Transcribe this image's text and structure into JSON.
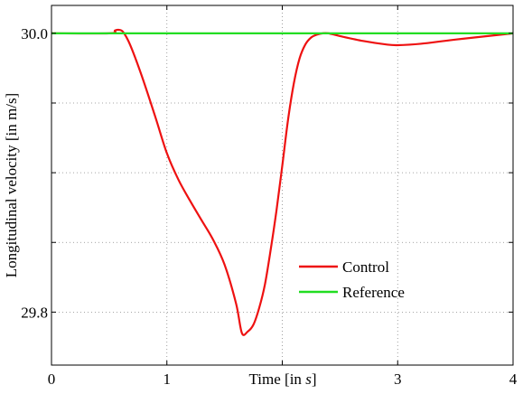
{
  "chart_data": {
    "type": "line",
    "xlabel": "Time [in s]",
    "ylabel": "Longitudinal velocity [in m/s]",
    "xlim": [
      0,
      4
    ],
    "ylim": [
      29.762,
      30.02
    ],
    "x_ticks": [
      0,
      1,
      2,
      3,
      4
    ],
    "x_tick_labels": [
      "0",
      "1",
      "",
      "3",
      "4"
    ],
    "y_ticks": [
      29.8,
      29.85,
      29.9,
      29.95,
      30.0
    ],
    "y_tick_labels": [
      "29.8",
      "",
      "",
      "",
      "30.0"
    ],
    "grid": true,
    "legend_position": "lower-right",
    "series": [
      {
        "name": "Control",
        "color": "#ee1111",
        "x": [
          0.0,
          0.5,
          0.55,
          0.58,
          0.62,
          0.68,
          0.78,
          0.9,
          1.0,
          1.1,
          1.2,
          1.3,
          1.4,
          1.5,
          1.6,
          1.65,
          1.7,
          1.75,
          1.8,
          1.85,
          1.9,
          1.95,
          2.0,
          2.05,
          2.1,
          2.15,
          2.2,
          2.25,
          2.3,
          2.35,
          2.4,
          2.5,
          2.7,
          2.9,
          3.0,
          3.2,
          3.5,
          4.0
        ],
        "y": [
          30.0,
          30.0,
          30.002,
          30.0025,
          30.001,
          29.992,
          29.97,
          29.94,
          29.914,
          29.895,
          29.88,
          29.866,
          29.852,
          29.834,
          29.806,
          29.785,
          29.786,
          29.791,
          29.803,
          29.82,
          29.845,
          29.873,
          29.905,
          29.938,
          29.964,
          29.982,
          29.992,
          29.997,
          29.999,
          30.0,
          30.0,
          29.998,
          29.9945,
          29.992,
          29.9915,
          29.9925,
          29.9955,
          30.0
        ]
      },
      {
        "name": "Reference",
        "color": "#22dd22",
        "x": [
          0,
          4
        ],
        "y": [
          30.0,
          30.0
        ]
      }
    ],
    "xlabel_parts": {
      "pre": "Time [in ",
      "unit": "s",
      "post": "]"
    }
  }
}
